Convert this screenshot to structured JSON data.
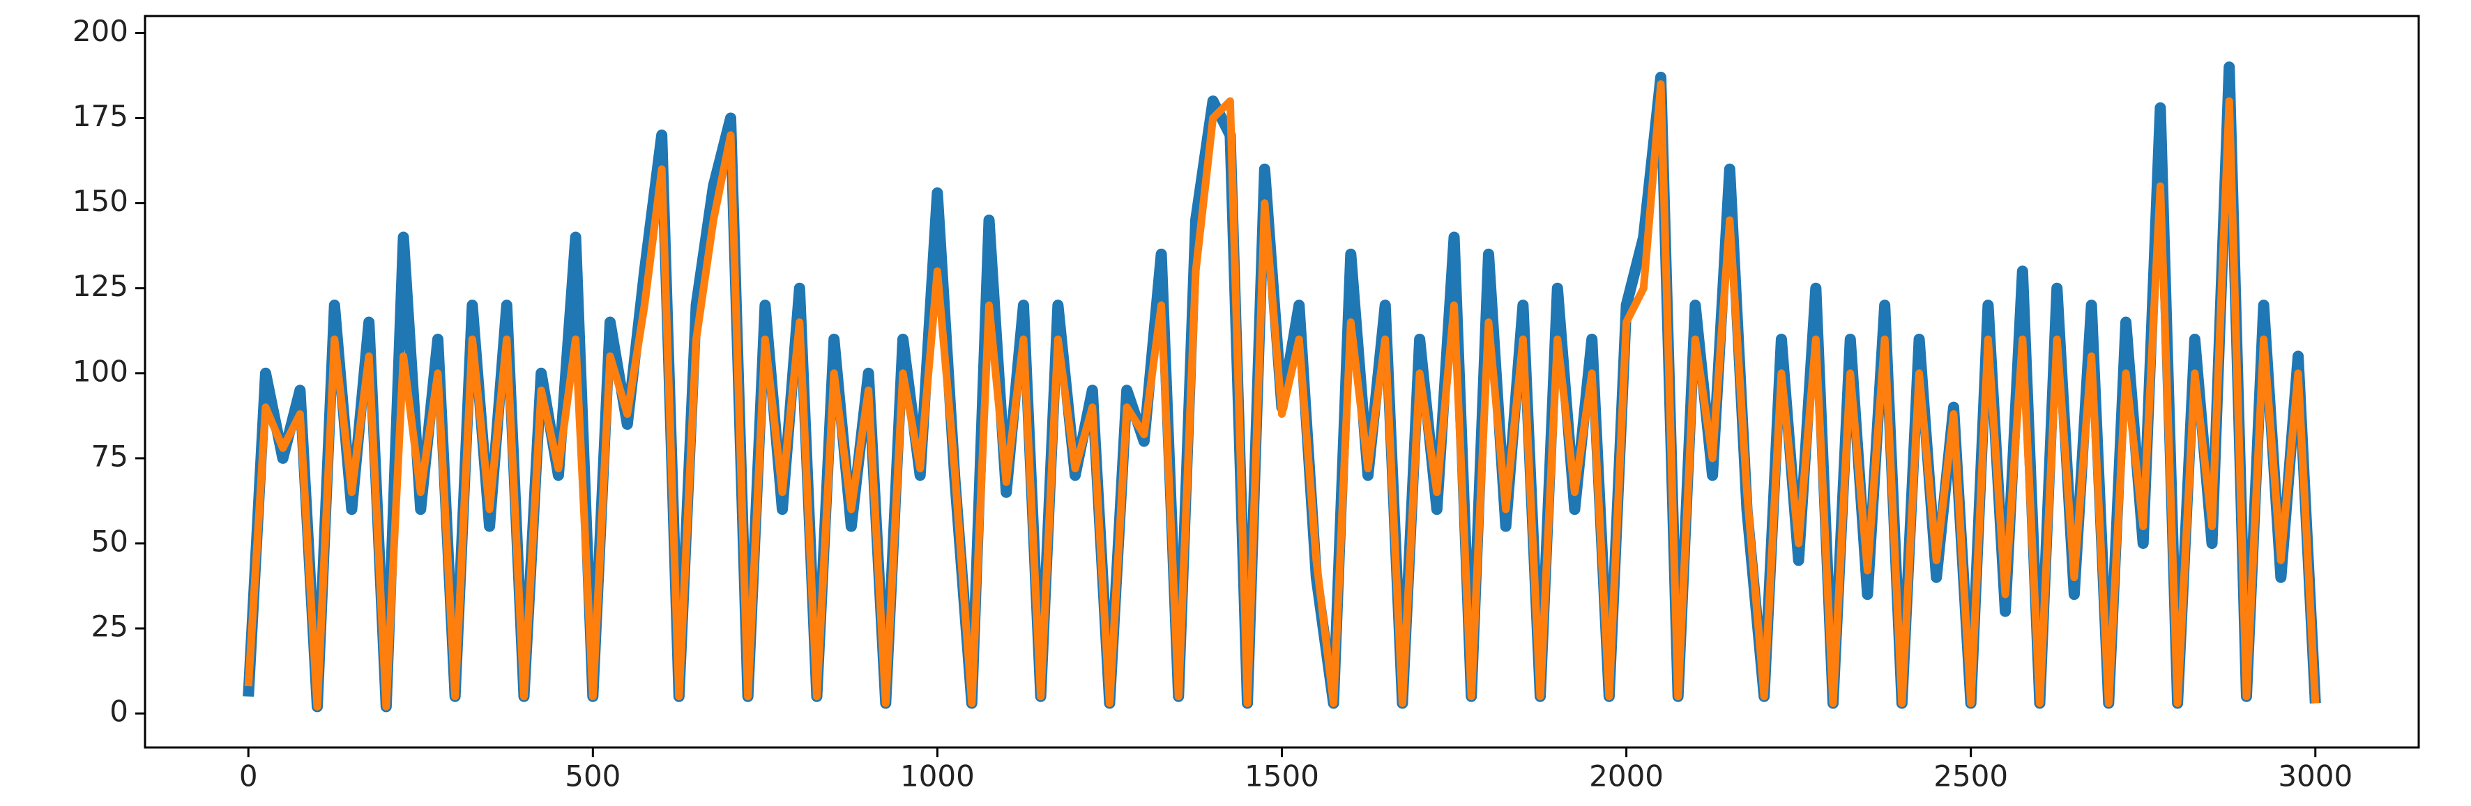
{
  "chart_data": {
    "type": "line",
    "x": [
      0,
      25,
      50,
      75,
      100,
      125,
      150,
      175,
      200,
      225,
      250,
      275,
      300,
      325,
      350,
      375,
      400,
      425,
      450,
      475,
      500,
      525,
      550,
      575,
      600,
      625,
      650,
      675,
      700,
      725,
      750,
      775,
      800,
      825,
      850,
      875,
      900,
      925,
      950,
      975,
      1000,
      1025,
      1050,
      1075,
      1100,
      1125,
      1150,
      1175,
      1200,
      1225,
      1250,
      1275,
      1300,
      1325,
      1350,
      1375,
      1400,
      1425,
      1450,
      1475,
      1500,
      1525,
      1550,
      1575,
      1600,
      1625,
      1650,
      1675,
      1700,
      1725,
      1750,
      1775,
      1800,
      1825,
      1850,
      1875,
      1900,
      1925,
      1950,
      1975,
      2000,
      2025,
      2050,
      2075,
      2100,
      2125,
      2150,
      2175,
      2200,
      2225,
      2250,
      2275,
      2300,
      2325,
      2350,
      2375,
      2400,
      2425,
      2450,
      2475,
      2500,
      2525,
      2550,
      2575,
      2600,
      2625,
      2650,
      2675,
      2700,
      2725,
      2750,
      2775,
      2800,
      2825,
      2850,
      2875,
      2900,
      2925,
      2950,
      2975,
      3000
    ],
    "series": [
      {
        "color": "#1f77b4",
        "values": [
          5,
          100,
          75,
          95,
          2,
          120,
          60,
          115,
          2,
          140,
          60,
          110,
          5,
          120,
          55,
          120,
          5,
          100,
          70,
          140,
          5,
          115,
          85,
          130,
          170,
          5,
          120,
          155,
          175,
          5,
          120,
          60,
          125,
          5,
          110,
          55,
          100,
          3,
          110,
          70,
          153,
          70,
          3,
          145,
          65,
          120,
          5,
          120,
          70,
          95,
          3,
          95,
          80,
          135,
          5,
          145,
          180,
          170,
          3,
          160,
          90,
          120,
          40,
          3,
          135,
          70,
          120,
          3,
          110,
          60,
          140,
          5,
          135,
          55,
          120,
          5,
          125,
          60,
          110,
          5,
          120,
          140,
          187,
          5,
          120,
          70,
          160,
          60,
          5,
          110,
          45,
          125,
          3,
          110,
          35,
          120,
          3,
          110,
          40,
          90,
          3,
          120,
          30,
          130,
          3,
          125,
          35,
          120,
          3,
          115,
          50,
          178,
          3,
          110,
          50,
          190,
          5,
          120,
          40,
          105,
          3
        ]
      },
      {
        "color": "#ff7f0e",
        "values": [
          8,
          90,
          78,
          88,
          2,
          110,
          65,
          105,
          2,
          105,
          65,
          100,
          5,
          110,
          60,
          110,
          5,
          95,
          72,
          110,
          5,
          105,
          88,
          120,
          160,
          5,
          110,
          145,
          170,
          5,
          110,
          65,
          115,
          5,
          100,
          60,
          95,
          3,
          100,
          72,
          130,
          72,
          3,
          120,
          68,
          110,
          5,
          110,
          72,
          90,
          3,
          90,
          82,
          120,
          5,
          130,
          175,
          180,
          3,
          150,
          88,
          110,
          45,
          3,
          115,
          72,
          110,
          3,
          100,
          65,
          120,
          5,
          115,
          60,
          110,
          5,
          110,
          65,
          100,
          5,
          115,
          125,
          185,
          5,
          110,
          75,
          145,
          65,
          5,
          100,
          50,
          110,
          3,
          100,
          42,
          110,
          3,
          100,
          45,
          88,
          3,
          110,
          35,
          110,
          3,
          110,
          40,
          105,
          3,
          100,
          55,
          155,
          3,
          100,
          55,
          180,
          5,
          110,
          45,
          100,
          3
        ]
      }
    ],
    "xlim": [
      -150,
      3150
    ],
    "ylim": [
      -10,
      205
    ],
    "xticks": [
      0,
      500,
      1000,
      1500,
      2000,
      2500,
      3000
    ],
    "yticks": [
      0,
      25,
      50,
      75,
      100,
      125,
      150,
      175,
      200
    ],
    "grid": false
  }
}
